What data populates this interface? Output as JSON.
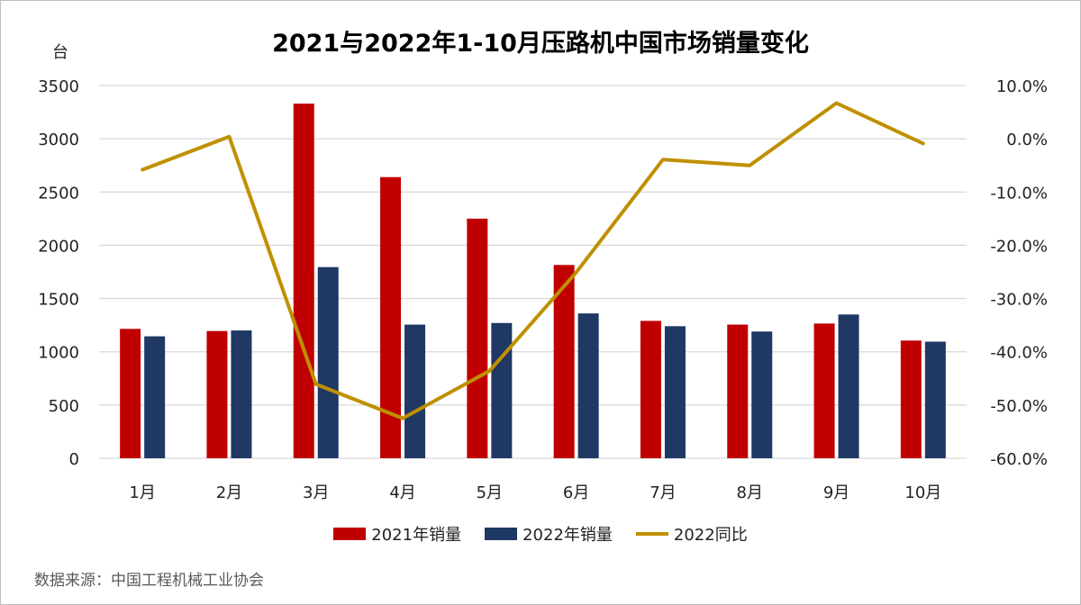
{
  "chart_data": {
    "type": "bar+line",
    "title": "2021与2022年1-10月压路机中国市场销量变化",
    "ylabel": "台",
    "categories": [
      "1月",
      "2月",
      "3月",
      "4月",
      "5月",
      "6月",
      "7月",
      "8月",
      "9月",
      "10月"
    ],
    "y_left": {
      "lim": [
        0,
        3500
      ],
      "ticks": [
        "0",
        "500",
        "1000",
        "1500",
        "2000",
        "2500",
        "3000",
        "3500"
      ]
    },
    "y_right": {
      "lim": [
        -60,
        10
      ],
      "ticks": [
        "-60.0%",
        "-50.0%",
        "-40.0%",
        "-30.0%",
        "-20.0%",
        "-10.0%",
        "0.0%",
        "10.0%"
      ]
    },
    "grid": true,
    "legend_position": "bottom",
    "series": [
      {
        "name": "2021年销量",
        "type": "bar",
        "axis": "left",
        "color": "#C00000",
        "values": [
          1215,
          1195,
          3330,
          2640,
          2250,
          1815,
          1290,
          1255,
          1265,
          1105
        ]
      },
      {
        "name": "2022年销量",
        "type": "bar",
        "axis": "left",
        "color": "#1F3864",
        "values": [
          1145,
          1200,
          1795,
          1255,
          1270,
          1360,
          1240,
          1190,
          1350,
          1095
        ]
      },
      {
        "name": "2022同比",
        "type": "line",
        "axis": "right",
        "color": "#BF9000",
        "values": [
          -5.8,
          0.4,
          -46.1,
          -52.5,
          -43.6,
          -25.1,
          -3.9,
          -5.0,
          6.7,
          -0.9
        ]
      }
    ]
  },
  "source": "数据来源：中国工程机械工业协会"
}
